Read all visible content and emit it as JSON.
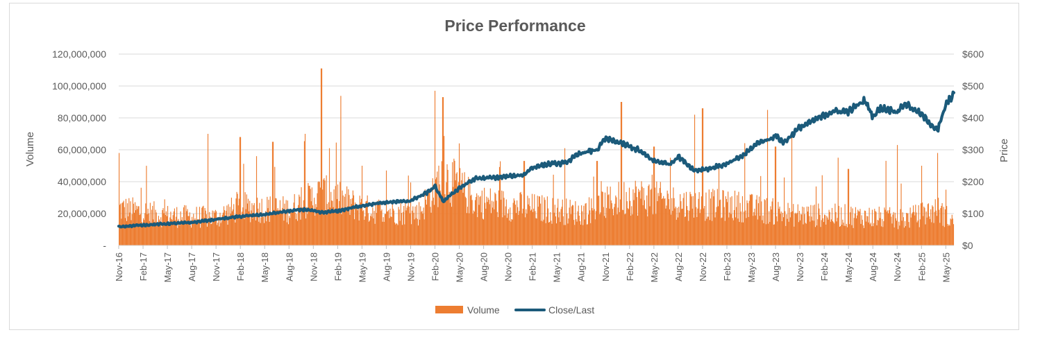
{
  "chart_data": {
    "type": "bar+line",
    "title": "Price Performance",
    "ylabel_left": "Volume",
    "ylabel_right": "Price",
    "ylim_left": [
      0,
      120000000
    ],
    "ylim_right": [
      0,
      600
    ],
    "yticks_left": [
      "-",
      "20,000,000",
      "40,000,000",
      "60,000,000",
      "80,000,000",
      "100,000,000",
      "120,000,000"
    ],
    "yticks_right": [
      "$0",
      "$100",
      "$200",
      "$300",
      "$400",
      "$500",
      "$600"
    ],
    "x_tick_labels": [
      "Nov-16",
      "Feb-17",
      "May-17",
      "Aug-17",
      "Nov-17",
      "Feb-18",
      "May-18",
      "Aug-18",
      "Nov-18",
      "Feb-19",
      "May-19",
      "Aug-19",
      "Nov-19",
      "Feb-20",
      "May-20",
      "Aug-20",
      "Nov-20",
      "Feb-21",
      "May-21",
      "Aug-21",
      "Nov-21",
      "Feb-22",
      "May-22",
      "Aug-22",
      "Nov-22",
      "Feb-23",
      "May-23",
      "Aug-23",
      "Nov-23",
      "Feb-24",
      "May-24",
      "Aug-24",
      "Nov-24",
      "Feb-25",
      "May-25"
    ],
    "x_range": [
      "2016-11",
      "2025-06"
    ],
    "grid": true,
    "legend_position": "bottom",
    "series": [
      {
        "name": "Volume",
        "kind": "bar",
        "axis": "left",
        "color": "#ED7D31",
        "baseline_points": [
          [
            "2016-11",
            25000000
          ],
          [
            "2017-05",
            20000000
          ],
          [
            "2017-11",
            19000000
          ],
          [
            "2018-02",
            26000000
          ],
          [
            "2018-08",
            24000000
          ],
          [
            "2018-12",
            35000000
          ],
          [
            "2019-06",
            24000000
          ],
          [
            "2019-12",
            22000000
          ],
          [
            "2020-03",
            48000000
          ],
          [
            "2020-07",
            30000000
          ],
          [
            "2021-01",
            26000000
          ],
          [
            "2021-08",
            22000000
          ],
          [
            "2022-02",
            34000000
          ],
          [
            "2022-09",
            28000000
          ],
          [
            "2023-03",
            27000000
          ],
          [
            "2023-10",
            21000000
          ],
          [
            "2024-05",
            20000000
          ],
          [
            "2024-12",
            18000000
          ],
          [
            "2025-04",
            24000000
          ],
          [
            "2025-06",
            16000000
          ]
        ],
        "peaks": [
          [
            "2016-11",
            58000000
          ],
          [
            "2017-10",
            70000000
          ],
          [
            "2018-02",
            68000000
          ],
          [
            "2018-04",
            56000000
          ],
          [
            "2018-06",
            65000000
          ],
          [
            "2018-10",
            70000000
          ],
          [
            "2018-12",
            111000000
          ],
          [
            "2019-01",
            61000000
          ],
          [
            "2019-05",
            50000000
          ],
          [
            "2019-08",
            47000000
          ],
          [
            "2020-02",
            97000000
          ],
          [
            "2020-03",
            93000000
          ],
          [
            "2020-05",
            64000000
          ],
          [
            "2021-01",
            53000000
          ],
          [
            "2021-06",
            61000000
          ],
          [
            "2021-10",
            53000000
          ],
          [
            "2022-01",
            90000000
          ],
          [
            "2022-05",
            62000000
          ],
          [
            "2022-07",
            55000000
          ],
          [
            "2022-10",
            82000000
          ],
          [
            "2022-11",
            86000000
          ],
          [
            "2023-01",
            50000000
          ],
          [
            "2023-07",
            85000000
          ],
          [
            "2023-08",
            62000000
          ],
          [
            "2023-10",
            70000000
          ],
          [
            "2024-01",
            37000000
          ],
          [
            "2024-05",
            48000000
          ],
          [
            "2024-11",
            63000000
          ],
          [
            "2025-02",
            50000000
          ],
          [
            "2025-04",
            58000000
          ],
          [
            "2025-05",
            35000000
          ]
        ]
      },
      {
        "name": "Close/Last",
        "kind": "line",
        "axis": "right",
        "color": "#1B5A7A",
        "points": [
          [
            "2016-11",
            59
          ],
          [
            "2017-02",
            64
          ],
          [
            "2017-05",
            68
          ],
          [
            "2017-08",
            72
          ],
          [
            "2017-11",
            82
          ],
          [
            "2018-02",
            91
          ],
          [
            "2018-05",
            97
          ],
          [
            "2018-08",
            108
          ],
          [
            "2018-10",
            113
          ],
          [
            "2018-12",
            103
          ],
          [
            "2019-02",
            108
          ],
          [
            "2019-05",
            125
          ],
          [
            "2019-08",
            135
          ],
          [
            "2019-11",
            140
          ],
          [
            "2020-01",
            165
          ],
          [
            "2020-02",
            185
          ],
          [
            "2020-03",
            138
          ],
          [
            "2020-05",
            180
          ],
          [
            "2020-07",
            210
          ],
          [
            "2020-09",
            212
          ],
          [
            "2020-11",
            216
          ],
          [
            "2021-01",
            222
          ],
          [
            "2021-02",
            245
          ],
          [
            "2021-04",
            255
          ],
          [
            "2021-06",
            258
          ],
          [
            "2021-08",
            290
          ],
          [
            "2021-10",
            300
          ],
          [
            "2021-11",
            335
          ],
          [
            "2022-01",
            320
          ],
          [
            "2022-03",
            300
          ],
          [
            "2022-05",
            265
          ],
          [
            "2022-07",
            255
          ],
          [
            "2022-08",
            280
          ],
          [
            "2022-10",
            235
          ],
          [
            "2022-12",
            242
          ],
          [
            "2023-02",
            255
          ],
          [
            "2023-04",
            282
          ],
          [
            "2023-06",
            325
          ],
          [
            "2023-07",
            330
          ],
          [
            "2023-08",
            345
          ],
          [
            "2023-09",
            322
          ],
          [
            "2023-11",
            370
          ],
          [
            "2024-01",
            395
          ],
          [
            "2024-03",
            420
          ],
          [
            "2024-05",
            420
          ],
          [
            "2024-07",
            455
          ],
          [
            "2024-08",
            405
          ],
          [
            "2024-09",
            430
          ],
          [
            "2024-11",
            420
          ],
          [
            "2024-12",
            445
          ],
          [
            "2025-02",
            410
          ],
          [
            "2025-03",
            385
          ],
          [
            "2025-04",
            360
          ],
          [
            "2025-05",
            440
          ],
          [
            "2025-06",
            478
          ]
        ]
      }
    ]
  },
  "colors": {
    "volume": "#ED7D31",
    "price": "#1B5A7A",
    "text": "#595959",
    "grid": "#D9D9D9"
  }
}
